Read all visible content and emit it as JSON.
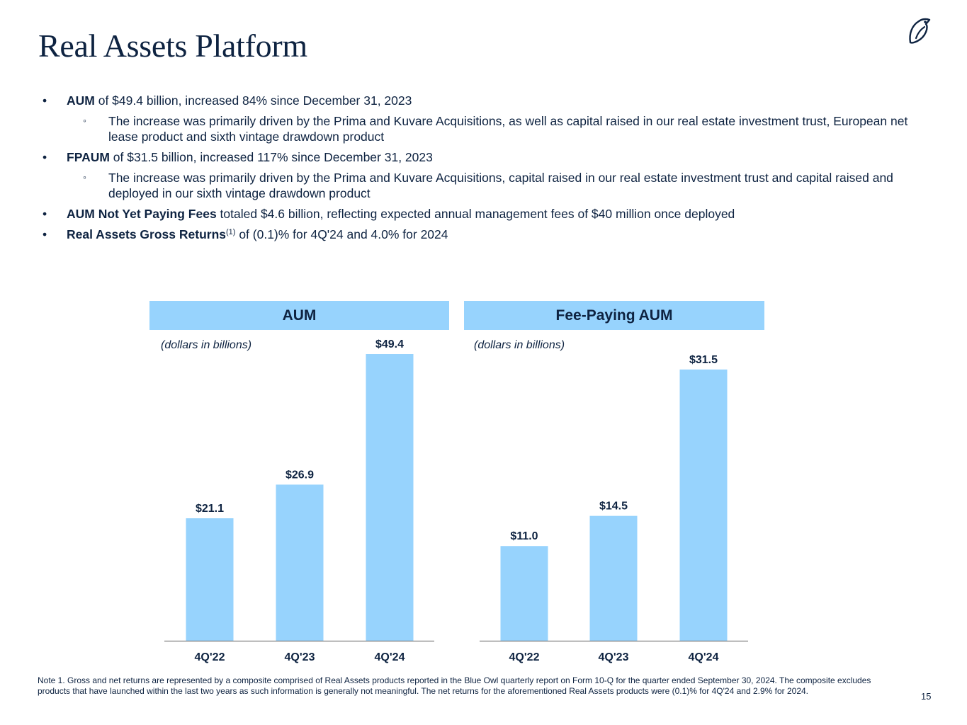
{
  "title": "Real Assets Platform",
  "bullets": {
    "b1_bold": "AUM",
    "b1_rest": " of $49.4 billion, increased 84% since December 31, 2023",
    "b1_sub": "The increase was primarily driven by the Prima and Kuvare Acquisitions, as well as capital raised in our real estate investment trust, European net lease product and sixth vintage drawdown product",
    "b2_bold": "FPAUM",
    "b2_rest": " of $31.5 billion, increased 117% since December 31, 2023",
    "b2_sub": "The increase was primarily driven by the Prima and Kuvare Acquisitions, capital raised in our real estate investment trust and capital raised and deployed in our sixth vintage drawdown product",
    "b3_bold": "AUM Not Yet Paying Fees",
    "b3_rest": " totaled $4.6 billion, reflecting expected annual management fees of $40 million once deployed",
    "b4_bold": "Real Assets Gross Returns",
    "b4_sup": "(1)",
    "b4_rest": " of (0.1)% for 4Q'24 and 4.0% for 2024",
    "bullet_char": "•",
    "sub_bullet_char": "◦"
  },
  "chart_data": [
    {
      "type": "bar",
      "title": "AUM",
      "subtitle": "(dollars in billions)",
      "categories": [
        "4Q'22",
        "4Q'23",
        "4Q'24"
      ],
      "values": [
        21.1,
        26.9,
        49.4
      ],
      "labels": [
        "$21.1",
        "$26.9",
        "$49.4"
      ],
      "ylim": [
        0,
        49.4
      ],
      "grid": false,
      "color": "#97d3fd"
    },
    {
      "type": "bar",
      "title": "Fee-Paying AUM",
      "subtitle": "(dollars in billions)",
      "categories": [
        "4Q'22",
        "4Q'23",
        "4Q'24"
      ],
      "values": [
        11.0,
        14.5,
        31.5
      ],
      "labels": [
        "$11.0",
        "$14.5",
        "$31.5"
      ],
      "ylim": [
        0,
        33.3
      ],
      "grid": false,
      "color": "#97d3fd"
    }
  ],
  "footnote": "Note 1. Gross and net returns are represented by a composite comprised of Real Assets products reported in the Blue Owl quarterly report on Form 10-Q for the quarter ended September 30, 2024. The composite excludes products that have launched within the last two years as such information is generally not meaningful. The net returns for the aforementioned Real Assets products were (0.1)% for 4Q'24 and 2.9% for 2024.",
  "page_number": "15",
  "colors": {
    "text": "#0e2341",
    "bar": "#97d3fd",
    "axis": "#7f7f7f"
  },
  "icons": {
    "logo": "owl-logo-icon"
  }
}
